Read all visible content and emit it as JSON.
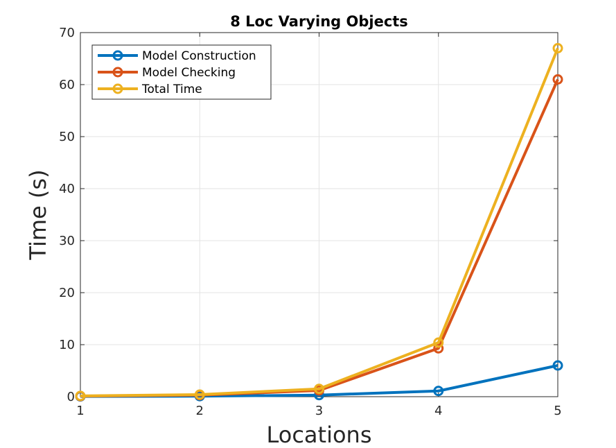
{
  "chart_data": {
    "type": "line",
    "title": "8 Loc Varying Objects",
    "xlabel": "Locations",
    "ylabel": "Time (s)",
    "x": [
      1,
      2,
      3,
      4,
      5
    ],
    "xlim": [
      1,
      5
    ],
    "ylim": [
      0,
      70
    ],
    "xticks": [
      "1",
      "2",
      "3",
      "4",
      "5"
    ],
    "yticks": [
      "0",
      "10",
      "20",
      "30",
      "40",
      "50",
      "60",
      "70"
    ],
    "grid": true,
    "legend_position": "top-left",
    "series": [
      {
        "name": "Model Construction",
        "color": "#0072BD",
        "marker": "circle",
        "values": [
          0.05,
          0.1,
          0.3,
          1.1,
          6.0
        ]
      },
      {
        "name": "Model Checking",
        "color": "#D95319",
        "marker": "circle",
        "values": [
          0.1,
          0.3,
          1.2,
          9.3,
          61.0
        ]
      },
      {
        "name": "Total Time",
        "color": "#EDB120",
        "marker": "circle",
        "values": [
          0.15,
          0.4,
          1.5,
          10.4,
          67.0
        ]
      }
    ]
  }
}
